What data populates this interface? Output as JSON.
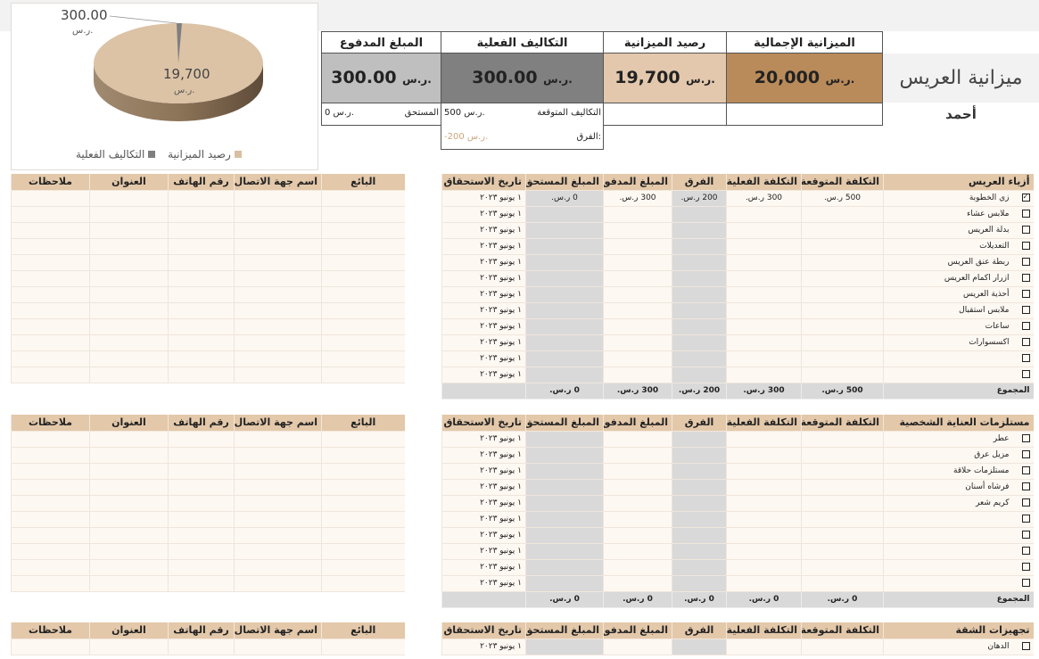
{
  "title": "ميزانية العريس",
  "owner": "أحمد",
  "cards": {
    "total": {
      "label": "الميزانية الإجمالية",
      "value": "20,000",
      "cur": "ر.س.",
      "color": "#b98b5a"
    },
    "balance": {
      "label": "رصيد الميزانية",
      "value": "19,700",
      "cur": "ر.س.",
      "color": "#e3c8ad"
    },
    "actual": {
      "label": "التكاليف الفعلية",
      "value": "300.00",
      "cur": "ر.س.",
      "color": "#808080",
      "expected_label": "التكاليف المتوقعة",
      "expected_value": "500 ر.س.",
      "diff_label": "الفرق:",
      "diff_value": "-200 ر.س."
    },
    "paid": {
      "label": "المبلغ المدفوع",
      "value": "300.00",
      "cur": "ر.س.",
      "color": "#bfbfbf",
      "due_label": "المستحق",
      "due_value": "0 ر.س."
    }
  },
  "chart": {
    "labels": [
      {
        "value": "300.00",
        "cur": "ر.س."
      },
      {
        "value": "19,700",
        "cur": "ر.س."
      }
    ],
    "legend": [
      "التكاليف الفعلية",
      "رصيد الميزانية"
    ],
    "values": [
      300,
      19700
    ],
    "colors": [
      "#7f7f7f",
      "#d9bfa2"
    ]
  },
  "columns": [
    "التكلفة المتوقعة",
    "التكلفة الفعلية",
    "الفرق",
    "المبلغ المدفوع",
    "المبلغ المستحق",
    "تاريخ الاستحقاق"
  ],
  "vendor_columns": [
    "البائع",
    "اسم جهة الاتصال",
    "رقم الهاتف",
    "العنوان",
    "ملاحظات"
  ],
  "total_label": "المجموع",
  "sections": [
    {
      "title": "أزياء العريس",
      "rows": [
        {
          "checked": true,
          "name": "زي الخطوبة",
          "expected": "500 ر.س.",
          "actual": "300 ر.س.",
          "diff": "200 ر.س.",
          "paid": "300 ر.س.",
          "due": "0 ر.س.",
          "date": "١ يونيو ٢٠٢٣"
        },
        {
          "name": "ملابس عشاء",
          "date": "١ يونيو ٢٠٢٣"
        },
        {
          "name": "بدلة العريس",
          "date": "١ يونيو ٢٠٢٣"
        },
        {
          "name": "التعديلات",
          "date": "١ يونيو ٢٠٢٣"
        },
        {
          "name": "ربطة عنق العريس",
          "date": "١ يونيو ٢٠٢٣"
        },
        {
          "name": "ازرار اكمام العريس",
          "date": "١ يونيو ٢٠٢٣"
        },
        {
          "name": "أحذية العريس",
          "date": "١ يونيو ٢٠٢٣"
        },
        {
          "name": "ملابس استقبال",
          "date": "١ يونيو ٢٠٢٣"
        },
        {
          "name": "ساعات",
          "date": "١ يونيو ٢٠٢٣"
        },
        {
          "name": "اكسسوارات",
          "date": "١ يونيو ٢٠٢٣"
        },
        {
          "name": "",
          "date": "١ يونيو ٢٠٢٣"
        },
        {
          "name": "",
          "date": "١ يونيو ٢٠٢٣"
        }
      ],
      "totals": {
        "expected": "500 ر.س.",
        "actual": "300 ر.س.",
        "diff": "200 ر.س.",
        "paid": "300 ر.س.",
        "due": "0 ر.س."
      }
    },
    {
      "title": "مستلزمات العناية الشخصية",
      "rows": [
        {
          "name": "عطر",
          "date": "١ يونيو ٢٠٢٣"
        },
        {
          "name": "مزيل عرق",
          "date": "١ يونيو ٢٠٢٣"
        },
        {
          "name": "مستلزمات حلاقة",
          "date": "١ يونيو ٢٠٢٣"
        },
        {
          "name": "فرشاه أسنان",
          "date": "١ يونيو ٢٠٢٣"
        },
        {
          "name": "كريم شعر",
          "date": "١ يونيو ٢٠٢٣"
        },
        {
          "name": "",
          "date": "١ يونيو ٢٠٢٣"
        },
        {
          "name": "",
          "date": "١ يونيو ٢٠٢٣"
        },
        {
          "name": "",
          "date": "١ يونيو ٢٠٢٣"
        },
        {
          "name": "",
          "date": "١ يونيو ٢٠٢٣"
        },
        {
          "name": "",
          "date": "١ يونيو ٢٠٢٣"
        }
      ],
      "totals": {
        "expected": "0 ر.س.",
        "actual": "0 ر.س.",
        "diff": "0 ر.س.",
        "paid": "0 ر.س.",
        "due": "0 ر.س."
      }
    },
    {
      "title": "تجهيزات الشقة",
      "rows": [
        {
          "name": "الدهان",
          "date": "١ يونيو ٢٠٢٣"
        }
      ]
    }
  ]
}
